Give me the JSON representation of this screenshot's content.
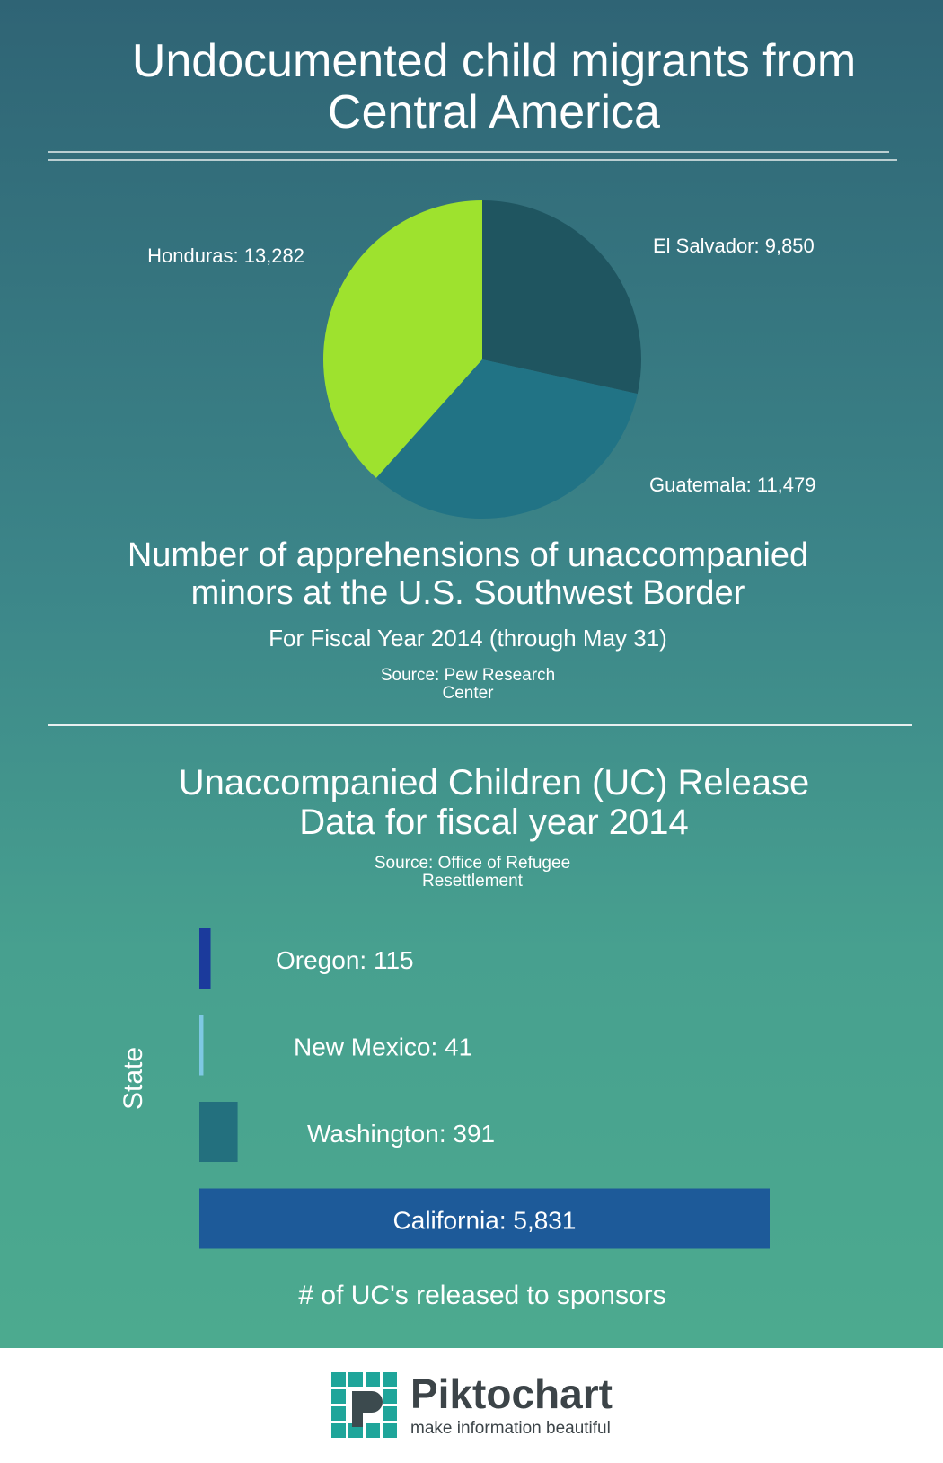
{
  "title": "Undocumented child migrants from Central America",
  "chart_data": [
    {
      "type": "pie",
      "title": "Number of apprehensions of unaccompanied minors at the U.S. Southwest Border",
      "subtitle": "For Fiscal Year 2014 (through May 31)",
      "source": "Source: Pew Research Center",
      "categories": [
        "El Salvador: 9,850",
        "Guatemala: 11,479",
        "Honduras: 13,282"
      ],
      "values": [
        9850,
        11479,
        13282
      ],
      "colors": [
        "#1f5560",
        "#217385",
        "#9ee22e"
      ]
    },
    {
      "type": "bar",
      "orientation": "horizontal",
      "title": "Unaccompanied Children (UC) Release Data for fiscal year 2014",
      "source": "Source: Office of Refugee Resettlement",
      "y_label": "State",
      "x_label": "# of UC's released to sponsors",
      "categories": [
        "Oregon: 115",
        "New Mexico: 41",
        "Washington: 391",
        "California: 5,831"
      ],
      "values": [
        115,
        41,
        391,
        5831
      ],
      "colors": [
        "#1b3a9c",
        "#7ec8e3",
        "#23707e",
        "#1d5a99"
      ]
    }
  ],
  "footer": {
    "brand": "Piktochart",
    "tagline": "make information beautiful"
  }
}
